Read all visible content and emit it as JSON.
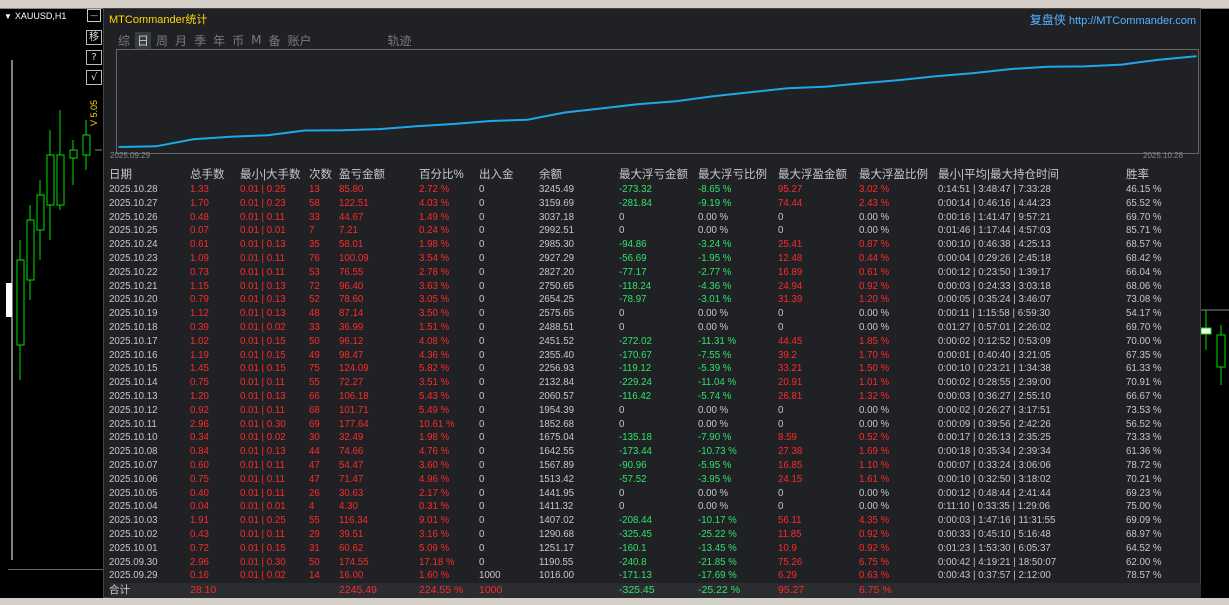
{
  "symbol": "XAUUSD,H1",
  "side_buttons": {
    "b1": "移",
    "b2": "?",
    "b3": "√"
  },
  "vlabel": "V 5.05",
  "panel": {
    "title": "MTCommander统计",
    "link_prefix": "复盘侠",
    "link_url": "http://MTCommander.com"
  },
  "tabs": [
    "综",
    "日",
    "周",
    "月",
    "季",
    "年",
    "币",
    "M",
    "备",
    "账户",
    "轨迹"
  ],
  "active_tab": "日",
  "chart": {
    "start_date": "2025.09.29",
    "end_date": "2025.10.28",
    "line_color": "#1fa8e8"
  },
  "chart_data": {
    "type": "line",
    "x": [
      "2025.09.29",
      "2025.09.30",
      "2025.10.01",
      "2025.10.02",
      "2025.10.03",
      "2025.10.04",
      "2025.10.05",
      "2025.10.06",
      "2025.10.07",
      "2025.10.08",
      "2025.10.10",
      "2025.10.11",
      "2025.10.12",
      "2025.10.13",
      "2025.10.14",
      "2025.10.15",
      "2025.10.16",
      "2025.10.17",
      "2025.10.18",
      "2025.10.19",
      "2025.10.20",
      "2025.10.21",
      "2025.10.22",
      "2025.10.23",
      "2025.10.24",
      "2025.10.25",
      "2025.10.26",
      "2025.10.27",
      "2025.10.28"
    ],
    "values": [
      1016.0,
      1190.55,
      1251.17,
      1290.68,
      1407.02,
      1411.32,
      1441.95,
      1513.42,
      1567.89,
      1642.55,
      1675.04,
      1852.68,
      1954.39,
      2060.57,
      2132.84,
      2256.93,
      2355.4,
      2451.52,
      2488.51,
      2575.65,
      2654.25,
      2750.65,
      2827.2,
      2927.29,
      2985.3,
      2992.51,
      3037.18,
      3159.69,
      3245.49
    ],
    "start": 1000,
    "ylim": [
      900,
      3300
    ]
  },
  "headers": [
    "日期",
    "总手数",
    "最小|大手数",
    "次数",
    "盈亏金额",
    "百分比%",
    "出入金",
    "余额",
    "最大浮亏金额",
    "最大浮亏比例",
    "最大浮盈金额",
    "最大浮盈比例",
    "最小|平均|最大持仓时间",
    "胜率"
  ],
  "rows": [
    [
      "2025.10.28",
      "1.33",
      "0.01 | 0.25",
      "13",
      "85.80",
      "2.72 %",
      "0",
      "3245.49",
      "-273.32",
      "-8.65 %",
      "95.27",
      "3.02 %",
      "0:14:51 | 3:48:47 | 7:33:28",
      "46.15 %"
    ],
    [
      "2025.10.27",
      "1.70",
      "0.01 | 0.23",
      "58",
      "122.51",
      "4.03 %",
      "0",
      "3159.69",
      "-281.84",
      "-9.19 %",
      "74.44",
      "2.43 %",
      "0:00:14 | 0:46:16 | 4:44:23",
      "65.52 %"
    ],
    [
      "2025.10.26",
      "0.48",
      "0.01 | 0.11",
      "33",
      "44.67",
      "1.49 %",
      "0",
      "3037.18",
      "0",
      "0.00 %",
      "0",
      "0.00 %",
      "0:00:16 | 1:41:47 | 9:57:21",
      "69.70 %"
    ],
    [
      "2025.10.25",
      "0.07",
      "0.01 | 0.01",
      "7",
      "7.21",
      "0.24 %",
      "0",
      "2992.51",
      "0",
      "0.00 %",
      "0",
      "0.00 %",
      "0:01:46 | 1:17:44 | 4:57:03",
      "85.71 %"
    ],
    [
      "2025.10.24",
      "0.61",
      "0.01 | 0.13",
      "35",
      "58.01",
      "1.98 %",
      "0",
      "2985.30",
      "-94.86",
      "-3.24 %",
      "25.41",
      "0.87 %",
      "0:00:10 | 0:46:38 | 4:25:13",
      "68.57 %"
    ],
    [
      "2025.10.23",
      "1.09",
      "0.01 | 0.11",
      "76",
      "100.09",
      "3.54 %",
      "0",
      "2927.29",
      "-56.69",
      "-1.95 %",
      "12.48",
      "0.44 %",
      "0:00:04 | 0:29:26 | 2:45:18",
      "68.42 %"
    ],
    [
      "2025.10.22",
      "0.73",
      "0.01 | 0.11",
      "53",
      "76.55",
      "2.78 %",
      "0",
      "2827.20",
      "-77.17",
      "-2.77 %",
      "16.89",
      "0.61 %",
      "0:00:12 | 0:23:50 | 1:39:17",
      "66.04 %"
    ],
    [
      "2025.10.21",
      "1.15",
      "0.01 | 0.13",
      "72",
      "96.40",
      "3.63 %",
      "0",
      "2750.65",
      "-118.24",
      "-4.36 %",
      "24.94",
      "0.92 %",
      "0:00:03 | 0:24:33 | 3:03:18",
      "68.06 %"
    ],
    [
      "2025.10.20",
      "0.79",
      "0.01 | 0.13",
      "52",
      "78.60",
      "3.05 %",
      "0",
      "2654.25",
      "-78.97",
      "-3.01 %",
      "31.39",
      "1.20 %",
      "0:00:05 | 0:35:24 | 3:46:07",
      "73.08 %"
    ],
    [
      "2025.10.19",
      "1.12",
      "0.01 | 0.13",
      "48",
      "87.14",
      "3.50 %",
      "0",
      "2575.65",
      "0",
      "0.00 %",
      "0",
      "0.00 %",
      "0:00:11 | 1:15:58 | 6:59:30",
      "54.17 %"
    ],
    [
      "2025.10.18",
      "0.39",
      "0.01 | 0.02",
      "33",
      "36.99",
      "1.51 %",
      "0",
      "2488.51",
      "0",
      "0.00 %",
      "0",
      "0.00 %",
      "0:01:27 | 0:57:01 | 2:26:02",
      "69.70 %"
    ],
    [
      "2025.10.17",
      "1.02",
      "0.01 | 0.15",
      "50",
      "96.12",
      "4.08 %",
      "0",
      "2451.52",
      "-272.02",
      "-11.31 %",
      "44.45",
      "1.85 %",
      "0:00:02 | 0:12:52 | 0:53:09",
      "70.00 %"
    ],
    [
      "2025.10.16",
      "1.19",
      "0.01 | 0.15",
      "49",
      "98.47",
      "4.36 %",
      "0",
      "2355.40",
      "-170.67",
      "-7.55 %",
      "39.2",
      "1.70 %",
      "0:00:01 | 0:40:40 | 3:21:05",
      "67.35 %"
    ],
    [
      "2025.10.15",
      "1.45",
      "0.01 | 0.15",
      "75",
      "124.09",
      "5.82 %",
      "0",
      "2256.93",
      "-119.12",
      "-5.39 %",
      "33.21",
      "1.50 %",
      "0:00:10 | 0:23:21 | 1:34:38",
      "61.33 %"
    ],
    [
      "2025.10.14",
      "0.75",
      "0.01 | 0.11",
      "55",
      "72.27",
      "3.51 %",
      "0",
      "2132.84",
      "-229.24",
      "-11.04 %",
      "20.91",
      "1.01 %",
      "0:00:02 | 0:28:55 | 2:39:00",
      "70.91 %"
    ],
    [
      "2025.10.13",
      "1.20",
      "0.01 | 0.13",
      "66",
      "106.18",
      "5.43 %",
      "0",
      "2060.57",
      "-116.42",
      "-5.74 %",
      "26.81",
      "1.32 %",
      "0:00:03 | 0:36:27 | 2:55:10",
      "66.67 %"
    ],
    [
      "2025.10.12",
      "0.92",
      "0.01 | 0.11",
      "68",
      "101.71",
      "5.49 %",
      "0",
      "1954.39",
      "0",
      "0.00 %",
      "0",
      "0.00 %",
      "0:00:02 | 0:26:27 | 3:17:51",
      "73.53 %"
    ],
    [
      "2025.10.11",
      "2.96",
      "0.01 | 0.30",
      "69",
      "177.64",
      "10.61 %",
      "0",
      "1852.68",
      "0",
      "0.00 %",
      "0",
      "0.00 %",
      "0:00:09 | 0:39:56 | 2:42:26",
      "56.52 %"
    ],
    [
      "2025.10.10",
      "0.34",
      "0.01 | 0.02",
      "30",
      "32.49",
      "1.98 %",
      "0",
      "1675.04",
      "-135.18",
      "-7.90 %",
      "8.59",
      "0.52 %",
      "0:00:17 | 0:26:13 | 2:35:25",
      "73.33 %"
    ],
    [
      "2025.10.08",
      "0.84",
      "0.01 | 0.13",
      "44",
      "74.66",
      "4.76 %",
      "0",
      "1642.55",
      "-173.44",
      "-10.73 %",
      "27.38",
      "1.69 %",
      "0:00:18 | 0:35:34 | 2:39:34",
      "61.36 %"
    ],
    [
      "2025.10.07",
      "0.60",
      "0.01 | 0.11",
      "47",
      "54.47",
      "3.60 %",
      "0",
      "1567.89",
      "-90.96",
      "-5.95 %",
      "16.85",
      "1.10 %",
      "0:00:07 | 0:33:24 | 3:06:06",
      "78.72 %"
    ],
    [
      "2025.10.06",
      "0.75",
      "0.01 | 0.11",
      "47",
      "71.47",
      "4.96 %",
      "0",
      "1513.42",
      "-57.52",
      "-3.95 %",
      "24.15",
      "1.61 %",
      "0:00:10 | 0:32:50 | 3:18:02",
      "70.21 %"
    ],
    [
      "2025.10.05",
      "0.40",
      "0.01 | 0.11",
      "26",
      "30.63",
      "2.17 %",
      "0",
      "1441.95",
      "0",
      "0.00 %",
      "0",
      "0.00 %",
      "0:00:12 | 0:48:44 | 2:41:44",
      "69.23 %"
    ],
    [
      "2025.10.04",
      "0.04",
      "0.01 | 0.01",
      "4",
      "4.30",
      "0.31 %",
      "0",
      "1411.32",
      "0",
      "0.00 %",
      "0",
      "0.00 %",
      "0:11:10 | 0:33:35 | 1:29:06",
      "75.00 %"
    ],
    [
      "2025.10.03",
      "1.91",
      "0.01 | 0.25",
      "55",
      "116.34",
      "9.01 %",
      "0",
      "1407.02",
      "-208.44",
      "-10.17 %",
      "56.11",
      "4.35 %",
      "0:00:03 | 1:47:16 | 11:31:55",
      "69.09 %"
    ],
    [
      "2025.10.02",
      "0.43",
      "0.01 | 0.11",
      "29",
      "39.51",
      "3.16 %",
      "0",
      "1290.68",
      "-325.45",
      "-25.22 %",
      "11.85",
      "0.92 %",
      "0:00:33 | 0:45:10 | 5:16:48",
      "68.97 %"
    ],
    [
      "2025.10.01",
      "0.72",
      "0.01 | 0.15",
      "31",
      "60.62",
      "5.09 %",
      "0",
      "1251.17",
      "-160.1",
      "-13.45 %",
      "10.9",
      "0.92 %",
      "0:01:23 | 1:53:30 | 6:05:37",
      "64.52 %"
    ],
    [
      "2025.09.30",
      "2.96",
      "0.01 | 0.30",
      "50",
      "174.55",
      "17.18 %",
      "0",
      "1190.55",
      "-240.8",
      "-21.85 %",
      "75.26",
      "6.75 %",
      "0:00:42 | 4:19:21 | 18:50:07",
      "62.00 %"
    ],
    [
      "2025.09.29",
      "0.16",
      "0.01 | 0.02",
      "14",
      "16.00",
      "1.60 %",
      "1000",
      "1016.00",
      "-171.13",
      "-17.69 %",
      "6.29",
      "0.63 %",
      "0:00:43 | 0:37:57 | 2:12:00",
      "78.57 %"
    ]
  ],
  "total": {
    "label": "合计",
    "lots": "28.10",
    "pnl": "2245.49",
    "pct": "224.55 %",
    "io": "1000",
    "mfl": "-325.45",
    "mflp": "-25.22 %",
    "mfp": "95.27",
    "mfpp": "6.75 %"
  }
}
